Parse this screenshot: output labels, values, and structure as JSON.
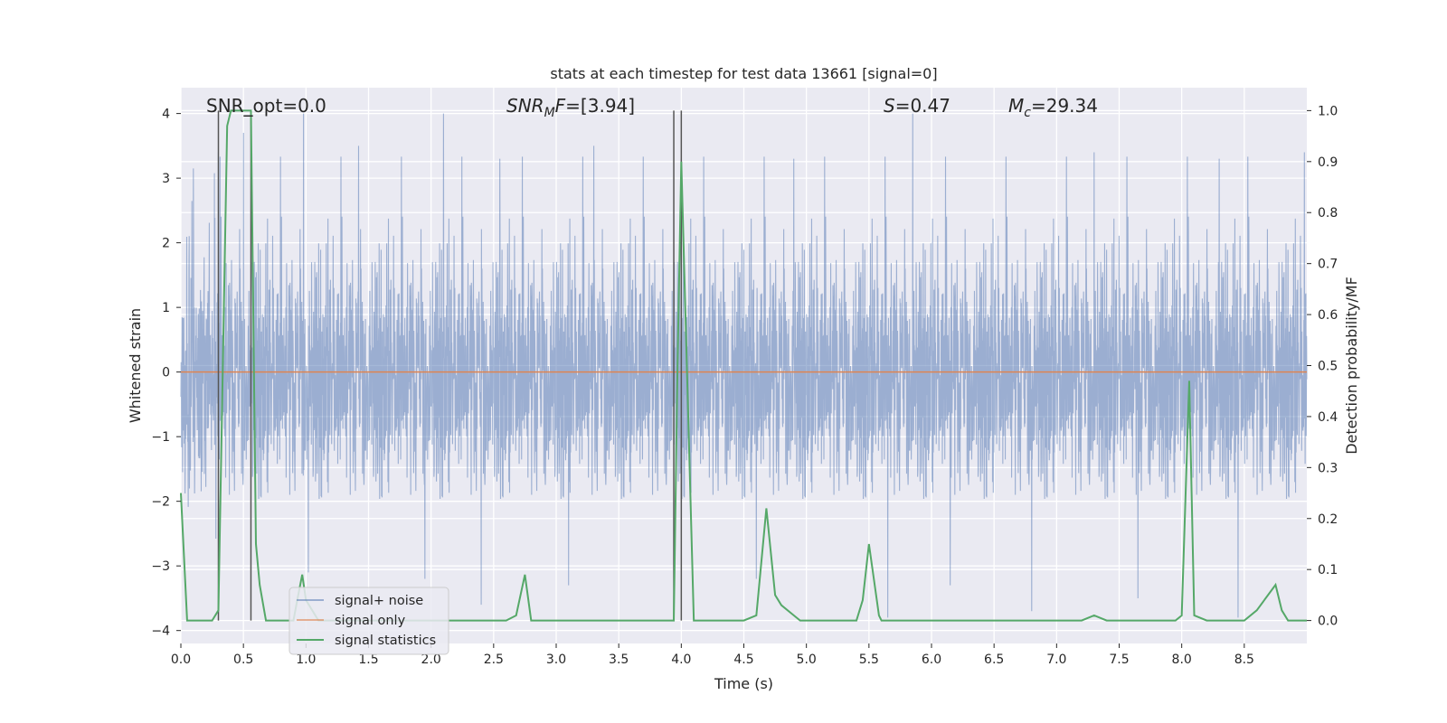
{
  "chart_data": {
    "type": "line",
    "title": "stats at each timestep for test data 13661 [signal=0]",
    "xlabel": "Time (s)",
    "ylabel": "Whitened strain",
    "y2label": "Detection probability/MF",
    "xlim": [
      0.0,
      9.0
    ],
    "ylim": [
      -4.2,
      4.4
    ],
    "y2lim": [
      -0.045,
      1.045
    ],
    "x_ticks": [
      "0.0",
      "0.5",
      "1.0",
      "1.5",
      "2.0",
      "2.5",
      "3.0",
      "3.5",
      "4.0",
      "4.5",
      "5.0",
      "5.5",
      "6.0",
      "6.5",
      "7.0",
      "7.5",
      "8.0",
      "8.5"
    ],
    "y_ticks": [
      "−4",
      "−3",
      "−2",
      "−1",
      "0",
      "1",
      "2",
      "3",
      "4"
    ],
    "y2_ticks": [
      "0.0",
      "0.1",
      "0.2",
      "0.3",
      "0.4",
      "0.5",
      "0.6",
      "0.7",
      "0.8",
      "0.9",
      "1.0"
    ],
    "grid": true,
    "legend_position": "lower-left",
    "annotations": {
      "snr_opt": "SNR_opt=0.0",
      "snr_mf_prefix": "SNR",
      "snr_mf_sub": "M",
      "snr_mf_suffix": "F=[3.94]",
      "s_prefix": "S",
      "s_suffix": "=0.47",
      "mc_prefix": "M",
      "mc_sub": "c",
      "mc_suffix": "=29.34"
    },
    "vertical_markers_x": [
      0.3,
      0.56,
      3.94,
      4.0
    ],
    "series": [
      {
        "name": "signal+ noise",
        "color": "#4c72b0",
        "axis": "left",
        "style": "dense noise, approx. amplitude range -3.8 to 4.0",
        "amplitude_envelope": [
          -3.8,
          4.0
        ],
        "spike_points": [
          [
            0.1,
            3.15
          ],
          [
            0.3,
            3.4
          ],
          [
            0.5,
            3.7
          ],
          [
            0.98,
            4.0
          ],
          [
            1.42,
            3.5
          ],
          [
            2.1,
            4.0
          ],
          [
            2.55,
            3.3
          ],
          [
            3.3,
            3.5
          ],
          [
            4.0,
            3.3
          ],
          [
            4.9,
            3.3
          ],
          [
            5.85,
            4.0
          ],
          [
            7.3,
            3.4
          ],
          [
            8.3,
            3.3
          ],
          [
            8.98,
            3.4
          ],
          [
            1.02,
            -3.1
          ],
          [
            1.95,
            -3.2
          ],
          [
            2.4,
            -3.6
          ],
          [
            3.1,
            -3.3
          ],
          [
            4.6,
            -3.2
          ],
          [
            5.65,
            -3.8
          ],
          [
            6.15,
            -3.3
          ],
          [
            6.8,
            -3.7
          ],
          [
            7.65,
            -3.5
          ],
          [
            8.45,
            -3.8
          ]
        ]
      },
      {
        "name": "signal only",
        "color": "#dd8452",
        "axis": "left",
        "x": [
          0.0,
          9.0
        ],
        "y": [
          0.0,
          0.0
        ]
      },
      {
        "name": "signal statistics",
        "color": "#55a868",
        "axis": "right",
        "x": [
          0.0,
          0.05,
          0.25,
          0.3,
          0.37,
          0.4,
          0.45,
          0.56,
          0.6,
          0.63,
          0.68,
          0.7,
          0.9,
          0.93,
          0.97,
          1.0,
          1.1,
          1.5,
          2.0,
          2.6,
          2.68,
          2.75,
          2.8,
          3.0,
          3.5,
          3.94,
          3.97,
          4.0,
          4.1,
          4.3,
          4.5,
          4.6,
          4.68,
          4.75,
          4.8,
          4.9,
          4.95,
          5.1,
          5.4,
          5.45,
          5.5,
          5.58,
          5.6,
          5.8,
          6.0,
          7.0,
          7.2,
          7.3,
          7.4,
          7.5,
          7.95,
          8.0,
          8.06,
          8.1,
          8.2,
          8.5,
          8.6,
          8.75,
          8.8,
          8.85,
          8.9,
          9.0
        ],
        "y": [
          0.25,
          0.0,
          0.0,
          0.02,
          0.97,
          1.0,
          1.0,
          1.0,
          0.15,
          0.07,
          0.0,
          0.0,
          0.0,
          0.04,
          0.09,
          0.04,
          0.0,
          0.0,
          0.0,
          0.0,
          0.01,
          0.09,
          0.0,
          0.0,
          0.0,
          0.0,
          0.5,
          0.9,
          0.0,
          0.0,
          0.0,
          0.01,
          0.22,
          0.05,
          0.03,
          0.01,
          0.0,
          0.0,
          0.0,
          0.04,
          0.15,
          0.01,
          0.0,
          0.0,
          0.0,
          0.0,
          0.0,
          0.01,
          0.0,
          0.0,
          0.0,
          0.01,
          0.47,
          0.01,
          0.0,
          0.0,
          0.02,
          0.07,
          0.02,
          0.0,
          0.0,
          0.0
        ]
      }
    ]
  }
}
